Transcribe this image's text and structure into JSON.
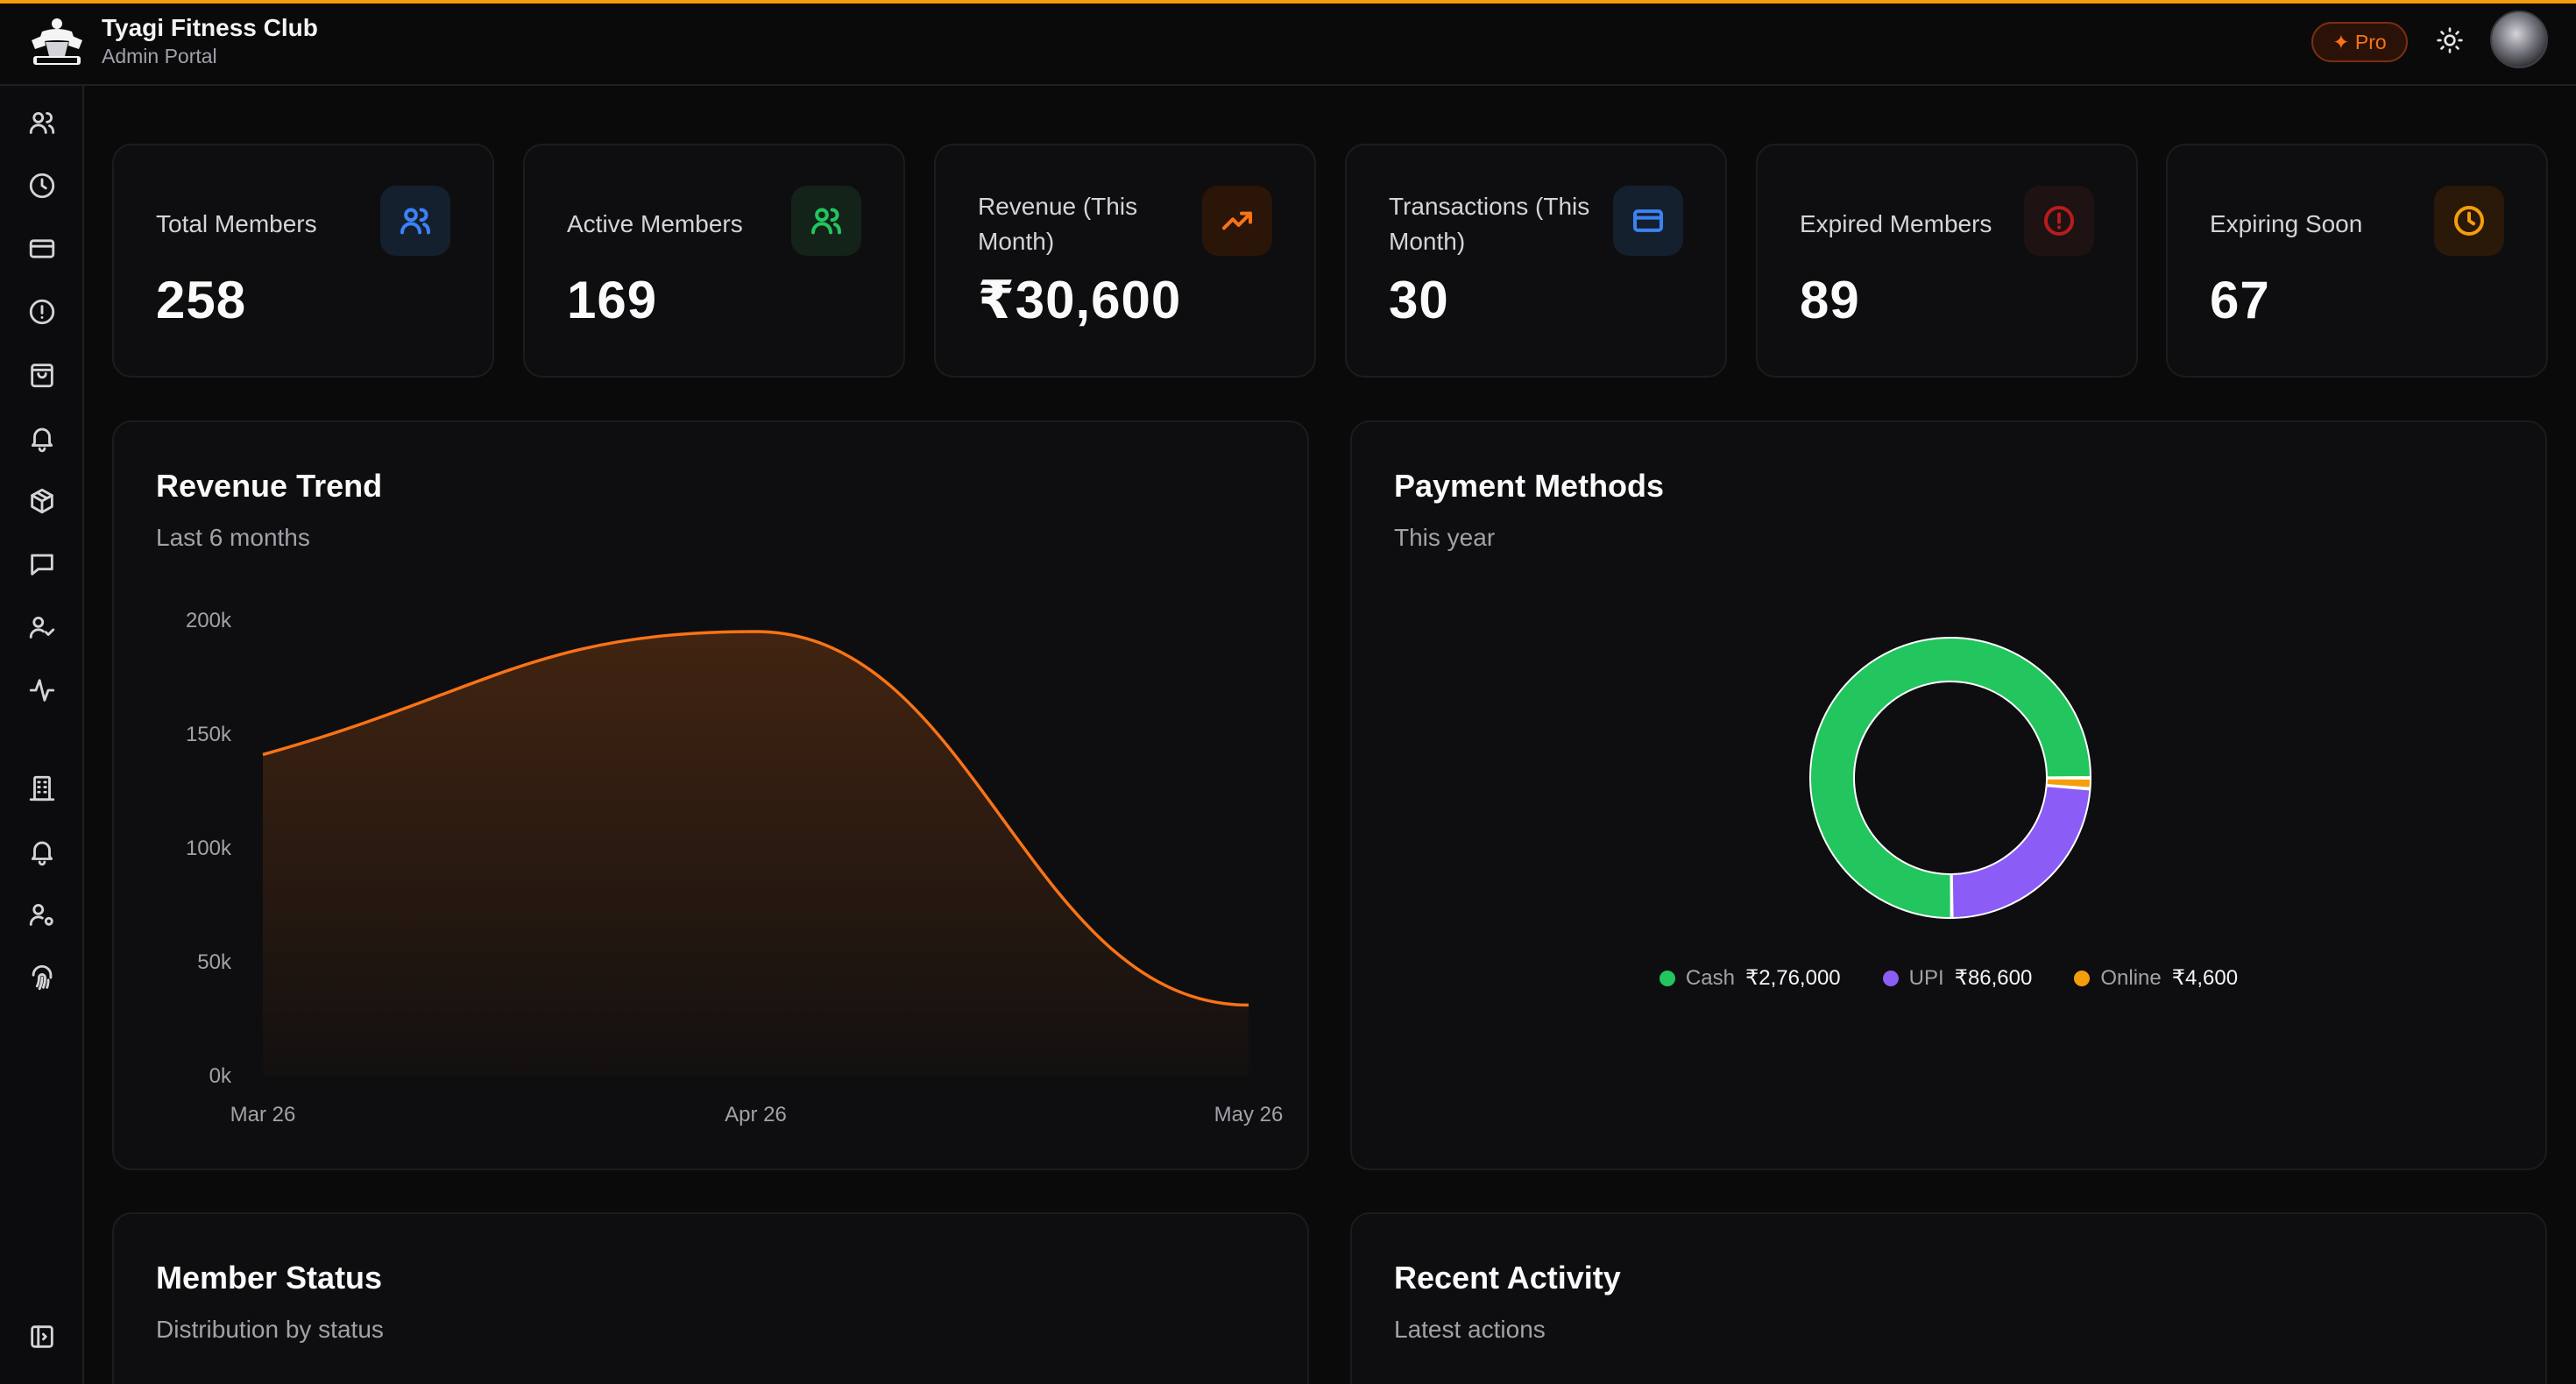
{
  "header": {
    "title": "Tyagi Fitness Club",
    "subtitle": "Admin Portal",
    "pro_label": "✦ Pro",
    "logo_icon": "gym-logo-icon",
    "theme_icon": "sun-icon",
    "avatar_icon": "user-avatar"
  },
  "sidebar": {
    "items": [
      {
        "icon": "users-icon"
      },
      {
        "icon": "clock-icon"
      },
      {
        "icon": "credit-card-icon"
      },
      {
        "icon": "alert-circle-icon"
      },
      {
        "icon": "shopping-bag-icon"
      },
      {
        "icon": "bell-icon"
      },
      {
        "icon": "package-icon"
      },
      {
        "icon": "message-square-icon"
      },
      {
        "icon": "user-check-icon"
      },
      {
        "icon": "activity-icon"
      },
      {
        "icon": "building-icon"
      },
      {
        "icon": "bell-icon"
      },
      {
        "icon": "user-cog-icon"
      },
      {
        "icon": "fingerprint-icon"
      }
    ],
    "collapse_icon": "panel-toggle-icon"
  },
  "stats": [
    {
      "label": "Total Members",
      "value": "258",
      "icon": "users-icon",
      "color": "#3b82f6"
    },
    {
      "label": "Active Members",
      "value": "169",
      "icon": "users-icon",
      "color": "#22c55e"
    },
    {
      "label": "Revenue (This Month)",
      "value": "₹30,600",
      "icon": "trending-up-icon",
      "color": "#f97316"
    },
    {
      "label": "Transactions (This Month)",
      "value": "30",
      "icon": "credit-card-icon",
      "color": "#3b82f6"
    },
    {
      "label": "Expired Members",
      "value": "89",
      "icon": "alert-circle-icon",
      "color": "#dc2626"
    },
    {
      "label": "Expiring Soon",
      "value": "67",
      "icon": "clock-icon",
      "color": "#f59e0b"
    }
  ],
  "revenue": {
    "title": "Revenue Trend",
    "subtitle": "Last 6 months"
  },
  "payments": {
    "title": "Payment Methods",
    "subtitle": "This year",
    "legend": [
      {
        "label": "Cash",
        "value": "₹2,76,000",
        "color": "#22c55e"
      },
      {
        "label": "UPI",
        "value": "₹86,600",
        "color": "#8b5cf6"
      },
      {
        "label": "Online",
        "value": "₹4,600",
        "color": "#f59e0b"
      }
    ]
  },
  "member_status": {
    "title": "Member Status",
    "subtitle": "Distribution by status"
  },
  "recent_activity": {
    "title": "Recent Activity",
    "subtitle": "Latest actions"
  },
  "chart_data": [
    {
      "type": "area",
      "title": "Revenue Trend",
      "subtitle": "Last 6 months",
      "x": [
        "Mar 26",
        "Apr 26",
        "May 26"
      ],
      "y_ticks": [
        "0k",
        "50k",
        "100k",
        "150k",
        "200k"
      ],
      "ylim": [
        0,
        200000
      ],
      "series": [
        {
          "values": [
            141000,
            195000,
            31000
          ]
        }
      ],
      "color": "#f97316",
      "grid": false
    },
    {
      "type": "pie",
      "title": "Payment Methods",
      "subtitle": "This year",
      "categories": [
        "Cash",
        "UPI",
        "Online"
      ],
      "values": [
        276000,
        86600,
        4600
      ],
      "colors": [
        "#22c55e",
        "#8b5cf6",
        "#f59e0b"
      ],
      "legend": "bottom"
    }
  ]
}
